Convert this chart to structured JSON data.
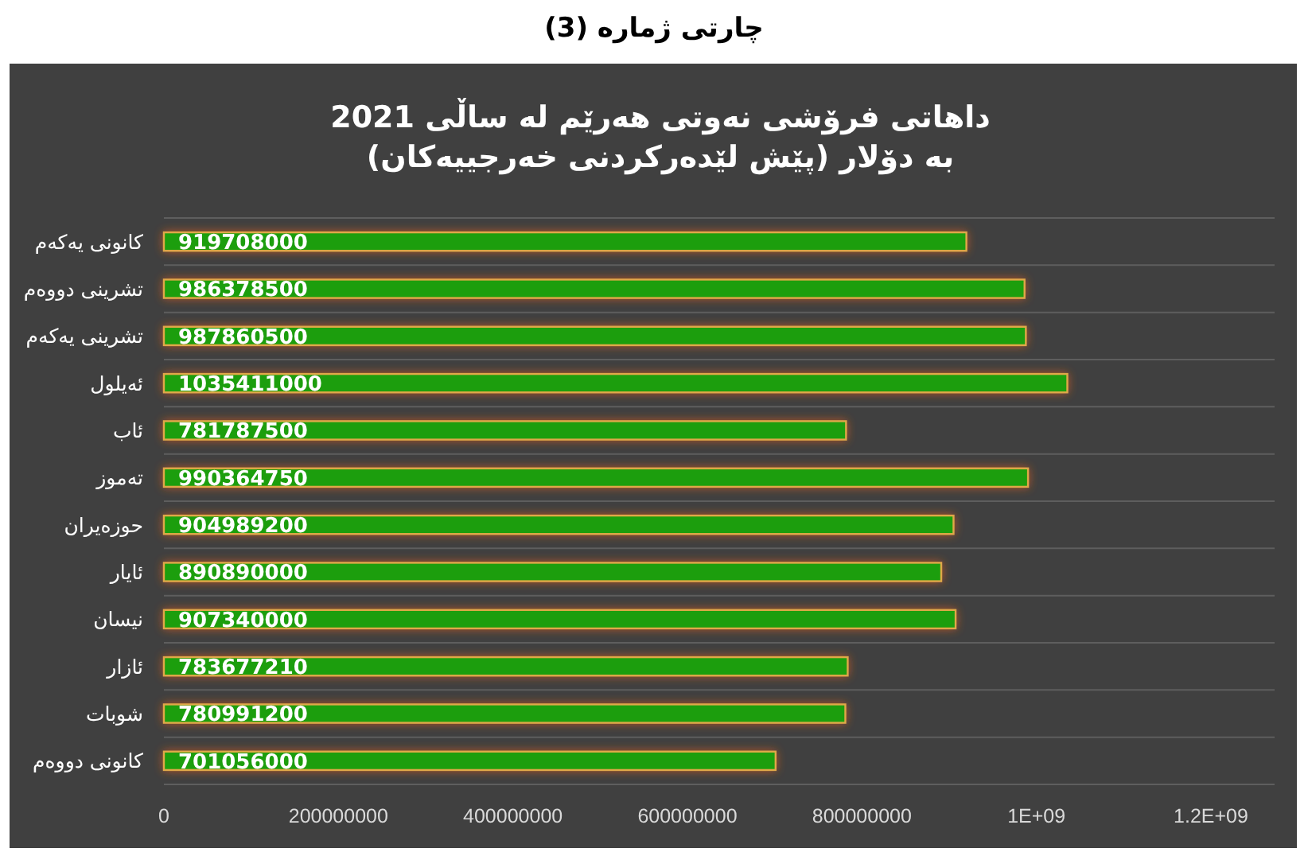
{
  "chart_data": {
    "type": "bar",
    "orientation": "horizontal",
    "title": "داهاتی فرۆشی نەوتی هەرێم لە ساڵی 2021\nبە دۆلار (پێش لێدەرکردنی خەرجییەکان)",
    "annotations": [
      "چارتی ژمارە (3)"
    ],
    "categories": [
      "کانونی یەکەم",
      "تشرینی دووەم",
      "تشرینی یەکەم",
      "ئەیلول",
      "ئاب",
      "تەموز",
      "حوزەیران",
      "ئایار",
      "نیسان",
      "ئازار",
      "شوبات",
      "کانونی دووەم"
    ],
    "values": [
      919708000,
      986378500,
      987860500,
      1035411000,
      781787500,
      990364750,
      904989200,
      890890000,
      907340000,
      783677210,
      780991200,
      701056000
    ],
    "color": "#1e9e0c",
    "xlim": [
      0,
      1200000000
    ],
    "xticks": [
      0,
      200000000,
      400000000,
      600000000,
      800000000,
      {
        "value": 1000000000,
        "label": "1E+09"
      },
      {
        "value": 1200000000,
        "label": "1.2E+09"
      }
    ],
    "grid": "y",
    "data_labels": true
  }
}
